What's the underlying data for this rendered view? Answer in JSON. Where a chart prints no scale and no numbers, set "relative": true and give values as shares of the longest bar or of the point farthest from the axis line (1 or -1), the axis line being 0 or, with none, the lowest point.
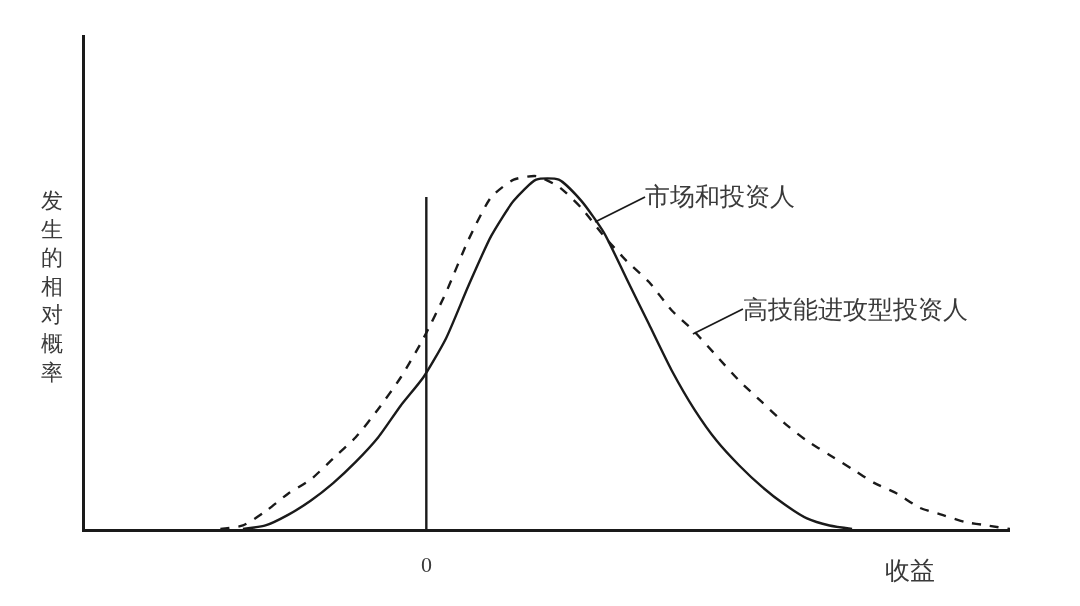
{
  "chart_data": {
    "type": "line",
    "relative": true,
    "xlabel": "收益",
    "ylabel": "发生的相对概率",
    "categories": [
      null,
      null,
      null,
      null,
      null,
      null,
      null,
      null,
      null,
      null,
      null,
      null,
      null,
      null,
      null,
      null,
      null,
      null,
      null,
      null,
      null,
      null,
      null,
      null,
      null,
      null,
      null,
      null,
      null,
      null,
      null,
      null,
      null,
      null,
      null,
      null,
      null,
      null,
      null,
      null,
      null,
      null
    ],
    "series": [
      {
        "color": "#1a1a1a",
        "line_style": "solid",
        "values": [
          null,
          null,
          null,
          null,
          null,
          null,
          null,
          0,
          0.01,
          0.04,
          0.08,
          0.13,
          0.19,
          0.26,
          0.35,
          0.43,
          0.54,
          0.69,
          0.83,
          0.93,
          0.99,
          0.99,
          0.93,
          0.84,
          0.71,
          0.58,
          0.45,
          0.34,
          0.25,
          0.18,
          0.12,
          0.07,
          0.03,
          0.01,
          0,
          null,
          null,
          null,
          null,
          null,
          null,
          null
        ]
      },
      {
        "color": "#1a1a1a",
        "line_style": "dashed",
        "values": [
          null,
          null,
          null,
          null,
          null,
          null,
          0,
          0.01,
          0.05,
          0.1,
          0.14,
          0.2,
          0.26,
          0.34,
          0.43,
          0.54,
          0.67,
          0.82,
          0.94,
          0.99,
          1,
          0.97,
          0.91,
          0.83,
          0.76,
          0.7,
          0.62,
          0.56,
          0.49,
          0.42,
          0.36,
          0.3,
          0.25,
          0.21,
          0.17,
          0.13,
          0.1,
          0.06,
          0.04,
          0.02,
          0.01,
          0
        ]
      }
    ],
    "annotations": [
      "市场和投资人",
      "高技能进攻型投资人",
      "0"
    ]
  }
}
